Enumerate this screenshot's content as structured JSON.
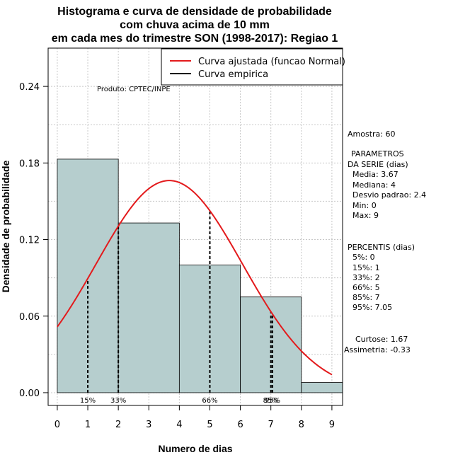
{
  "chart_data": {
    "type": "bar",
    "title_lines": [
      "Histograma e curva de densidade de probabilidade",
      "com chuva acima de 10 mm",
      "em cada mes do trimestre SON (1998-2017): Regiao 1"
    ],
    "xlabel": "Numero de dias",
    "ylabel": "Densidade de probabilidade",
    "xlim": [
      -0.3,
      9.35
    ],
    "ylim": [
      -0.01,
      0.27
    ],
    "x_ticks": [
      0,
      1,
      2,
      3,
      4,
      5,
      6,
      7,
      8,
      9
    ],
    "y_ticks": [
      0.0,
      0.06,
      0.12,
      0.18,
      0.24
    ],
    "y_tick_labels": [
      "0.00",
      "0.06",
      "0.12",
      "0.18",
      "0.24"
    ],
    "grid": true,
    "bins": [
      {
        "from": 0,
        "to": 2,
        "density": 0.183
      },
      {
        "from": 2,
        "to": 4,
        "density": 0.133
      },
      {
        "from": 4,
        "to": 6,
        "density": 0.1
      },
      {
        "from": 6,
        "to": 8,
        "density": 0.075
      },
      {
        "from": 8,
        "to": 9.35,
        "density": 0.008
      }
    ],
    "normal_curve": {
      "mean": 3.67,
      "sd": 2.4,
      "x_from": 0,
      "x_to": 9
    },
    "percentile_lines": [
      {
        "x": 1,
        "label": "15%"
      },
      {
        "x": 2,
        "label": "33%"
      },
      {
        "x": 5,
        "label": "66%"
      },
      {
        "x": 7,
        "label": "85%"
      },
      {
        "x": 7.05,
        "label": "95%"
      }
    ],
    "legend": {
      "placement": "top-right",
      "entries": [
        {
          "label": "Curva ajustada (funcao Normal)",
          "color": "#e31a1c"
        },
        {
          "label": "Curva empirica",
          "color": "#000000"
        }
      ]
    },
    "colors": {
      "bar_fill": "#b6cece",
      "curve": "#e31a1c"
    },
    "product_label": "Produto: CPTEC/INPE"
  },
  "side_panel": {
    "amostra": "Amostra: 60",
    "params_title_1": "PARAMETROS",
    "params_title_2": "DA SERIE (dias)",
    "media": "Media: 3.67",
    "mediana": "Mediana: 4",
    "desvio": "Desvio padrao: 2.4",
    "min": "Min: 0",
    "max": "Max: 9",
    "percentis_title": "PERCENTIS (dias)",
    "p5": "5%: 0",
    "p15": "15%: 1",
    "p33": "33%: 2",
    "p66": "66%: 5",
    "p85": "85%: 7",
    "p95": "95%: 7.05",
    "curtose": "Curtose: 1.67",
    "assimetria": "Assimetria: -0.33"
  }
}
